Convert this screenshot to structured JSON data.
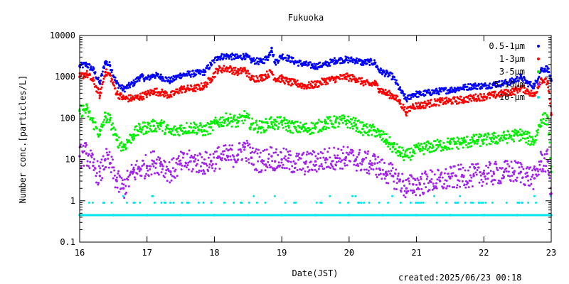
{
  "chart_data": {
    "type": "scatter",
    "title": "Fukuoka",
    "xlabel": "Date(JST)",
    "ylabel": "Number conc.[particles/L]",
    "xlim": [
      16,
      23
    ],
    "ylim": [
      0.1,
      10000
    ],
    "yscale": "log",
    "x_ticks": [
      "16",
      "17",
      "18",
      "19",
      "20",
      "21",
      "22",
      "23"
    ],
    "y_ticks": [
      "0.1",
      "1",
      "10",
      "100",
      "1000",
      "10000"
    ],
    "legend_position": "top-right",
    "series": [
      {
        "name": "0.5-1μm",
        "color": "#0000ff",
        "points": [
          [
            16.0,
            1800
          ],
          [
            16.1,
            2000
          ],
          [
            16.2,
            1500
          ],
          [
            16.3,
            700
          ],
          [
            16.38,
            2300
          ],
          [
            16.45,
            1900
          ],
          [
            16.55,
            700
          ],
          [
            16.65,
            500
          ],
          [
            16.8,
            700
          ],
          [
            16.9,
            1000
          ],
          [
            17.0,
            900
          ],
          [
            17.1,
            1100
          ],
          [
            17.2,
            1000
          ],
          [
            17.35,
            800
          ],
          [
            17.5,
            1100
          ],
          [
            17.7,
            1200
          ],
          [
            17.85,
            1300
          ],
          [
            17.95,
            2000
          ],
          [
            18.05,
            3000
          ],
          [
            18.2,
            3200
          ],
          [
            18.35,
            2900
          ],
          [
            18.45,
            3200
          ],
          [
            18.55,
            2500
          ],
          [
            18.7,
            2300
          ],
          [
            18.8,
            3000
          ],
          [
            18.85,
            5000
          ],
          [
            18.9,
            2200
          ],
          [
            19.0,
            3200
          ],
          [
            19.1,
            2800
          ],
          [
            19.2,
            2300
          ],
          [
            19.35,
            2000
          ],
          [
            19.5,
            1800
          ],
          [
            19.65,
            2000
          ],
          [
            19.8,
            2500
          ],
          [
            19.95,
            2600
          ],
          [
            20.1,
            2500
          ],
          [
            20.2,
            2200
          ],
          [
            20.3,
            2300
          ],
          [
            20.38,
            2200
          ],
          [
            20.45,
            1400
          ],
          [
            20.55,
            1200
          ],
          [
            20.65,
            1000
          ],
          [
            20.75,
            500
          ],
          [
            20.85,
            280
          ],
          [
            20.95,
            380
          ],
          [
            21.05,
            380
          ],
          [
            21.2,
            420
          ],
          [
            21.35,
            450
          ],
          [
            21.5,
            480
          ],
          [
            21.7,
            550
          ],
          [
            21.85,
            600
          ],
          [
            22.0,
            600
          ],
          [
            22.15,
            650
          ],
          [
            22.3,
            700
          ],
          [
            22.45,
            800
          ],
          [
            22.55,
            1000
          ],
          [
            22.65,
            700
          ],
          [
            22.75,
            600
          ],
          [
            22.85,
            1500
          ],
          [
            22.95,
            1600
          ],
          [
            23.0,
            800
          ]
        ]
      },
      {
        "name": "1-3μm",
        "color": "#ff0000",
        "points": [
          [
            16.0,
            1000
          ],
          [
            16.1,
            1200
          ],
          [
            16.2,
            800
          ],
          [
            16.3,
            350
          ],
          [
            16.38,
            1300
          ],
          [
            16.45,
            1100
          ],
          [
            16.55,
            400
          ],
          [
            16.65,
            300
          ],
          [
            16.8,
            300
          ],
          [
            16.9,
            330
          ],
          [
            17.0,
            380
          ],
          [
            17.1,
            450
          ],
          [
            17.2,
            420
          ],
          [
            17.35,
            350
          ],
          [
            17.5,
            500
          ],
          [
            17.7,
            520
          ],
          [
            17.85,
            600
          ],
          [
            17.95,
            900
          ],
          [
            18.05,
            1500
          ],
          [
            18.2,
            1600
          ],
          [
            18.35,
            1300
          ],
          [
            18.45,
            1500
          ],
          [
            18.55,
            900
          ],
          [
            18.7,
            950
          ],
          [
            18.85,
            1300
          ],
          [
            18.9,
            900
          ],
          [
            19.0,
            900
          ],
          [
            19.1,
            750
          ],
          [
            19.2,
            700
          ],
          [
            19.35,
            600
          ],
          [
            19.5,
            650
          ],
          [
            19.65,
            800
          ],
          [
            19.8,
            900
          ],
          [
            19.95,
            1000
          ],
          [
            20.1,
            900
          ],
          [
            20.2,
            750
          ],
          [
            20.3,
            650
          ],
          [
            20.38,
            700
          ],
          [
            20.45,
            500
          ],
          [
            20.55,
            400
          ],
          [
            20.65,
            350
          ],
          [
            20.75,
            250
          ],
          [
            20.85,
            140
          ],
          [
            20.95,
            200
          ],
          [
            21.05,
            200
          ],
          [
            21.2,
            230
          ],
          [
            21.35,
            250
          ],
          [
            21.5,
            260
          ],
          [
            21.7,
            280
          ],
          [
            21.85,
            310
          ],
          [
            22.0,
            330
          ],
          [
            22.15,
            360
          ],
          [
            22.3,
            400
          ],
          [
            22.45,
            450
          ],
          [
            22.55,
            550
          ],
          [
            22.65,
            450
          ],
          [
            22.75,
            350
          ],
          [
            22.85,
            900
          ],
          [
            22.95,
            700
          ],
          [
            23.0,
            120
          ]
        ]
      },
      {
        "name": "3-5μm",
        "color": "#00ee00",
        "points": [
          [
            16.0,
            150
          ],
          [
            16.1,
            160
          ],
          [
            16.2,
            80
          ],
          [
            16.3,
            40
          ],
          [
            16.38,
            110
          ],
          [
            16.45,
            90
          ],
          [
            16.55,
            30
          ],
          [
            16.65,
            20
          ],
          [
            16.8,
            40
          ],
          [
            16.9,
            55
          ],
          [
            17.0,
            60
          ],
          [
            17.1,
            65
          ],
          [
            17.2,
            70
          ],
          [
            17.35,
            45
          ],
          [
            17.5,
            55
          ],
          [
            17.7,
            60
          ],
          [
            17.85,
            50
          ],
          [
            17.95,
            60
          ],
          [
            18.05,
            80
          ],
          [
            18.2,
            95
          ],
          [
            18.35,
            80
          ],
          [
            18.45,
            110
          ],
          [
            18.55,
            70
          ],
          [
            18.7,
            60
          ],
          [
            18.85,
            80
          ],
          [
            18.9,
            70
          ],
          [
            19.0,
            80
          ],
          [
            19.1,
            65
          ],
          [
            19.2,
            60
          ],
          [
            19.35,
            55
          ],
          [
            19.5,
            60
          ],
          [
            19.65,
            75
          ],
          [
            19.8,
            80
          ],
          [
            19.95,
            85
          ],
          [
            20.1,
            70
          ],
          [
            20.2,
            55
          ],
          [
            20.3,
            50
          ],
          [
            20.38,
            50
          ],
          [
            20.45,
            40
          ],
          [
            20.55,
            30
          ],
          [
            20.65,
            20
          ],
          [
            20.75,
            15
          ],
          [
            20.85,
            12
          ],
          [
            20.95,
            15
          ],
          [
            21.05,
            18
          ],
          [
            21.2,
            20
          ],
          [
            21.35,
            22
          ],
          [
            21.5,
            24
          ],
          [
            21.7,
            26
          ],
          [
            21.85,
            28
          ],
          [
            22.0,
            30
          ],
          [
            22.15,
            32
          ],
          [
            22.3,
            34
          ],
          [
            22.45,
            38
          ],
          [
            22.55,
            40
          ],
          [
            22.65,
            33
          ],
          [
            22.75,
            28
          ],
          [
            22.85,
            90
          ],
          [
            22.95,
            100
          ],
          [
            23.0,
            5
          ]
        ]
      },
      {
        "name": "5-10μm",
        "color": "#a020f0",
        "points": [
          [
            16.0,
            12
          ],
          [
            16.1,
            14
          ],
          [
            16.2,
            7
          ],
          [
            16.3,
            4
          ],
          [
            16.38,
            10
          ],
          [
            16.45,
            8
          ],
          [
            16.55,
            3
          ],
          [
            16.65,
            2
          ],
          [
            16.8,
            5
          ],
          [
            16.9,
            6
          ],
          [
            17.0,
            7
          ],
          [
            17.1,
            9
          ],
          [
            17.2,
            8
          ],
          [
            17.35,
            5
          ],
          [
            17.5,
            8
          ],
          [
            17.7,
            9
          ],
          [
            17.85,
            8
          ],
          [
            17.95,
            9
          ],
          [
            18.05,
            11
          ],
          [
            18.2,
            12
          ],
          [
            18.35,
            13
          ],
          [
            18.45,
            20
          ],
          [
            18.55,
            11
          ],
          [
            18.7,
            9
          ],
          [
            18.85,
            12
          ],
          [
            18.9,
            9
          ],
          [
            19.0,
            10
          ],
          [
            19.1,
            9
          ],
          [
            19.2,
            8
          ],
          [
            19.35,
            8
          ],
          [
            19.5,
            9
          ],
          [
            19.65,
            10
          ],
          [
            19.8,
            11
          ],
          [
            19.95,
            11
          ],
          [
            20.1,
            10
          ],
          [
            20.2,
            9
          ],
          [
            20.3,
            8
          ],
          [
            20.38,
            8
          ],
          [
            20.45,
            6
          ],
          [
            20.55,
            5
          ],
          [
            20.65,
            4
          ],
          [
            20.75,
            3
          ],
          [
            20.85,
            2
          ],
          [
            20.95,
            2.5
          ],
          [
            21.05,
            2.5
          ],
          [
            21.2,
            3
          ],
          [
            21.35,
            3
          ],
          [
            21.5,
            3.5
          ],
          [
            21.7,
            4
          ],
          [
            21.85,
            4
          ],
          [
            22.0,
            4.5
          ],
          [
            22.15,
            4.5
          ],
          [
            22.3,
            5
          ],
          [
            22.45,
            5
          ],
          [
            22.55,
            5
          ],
          [
            22.65,
            4
          ],
          [
            22.75,
            3.5
          ],
          [
            22.85,
            9
          ],
          [
            22.95,
            9
          ],
          [
            23.0,
            1.5
          ]
        ]
      },
      {
        "name": "10-μm",
        "color": "#00e5ee",
        "points": [
          [
            16.0,
            0.45
          ],
          [
            16.5,
            0.45
          ],
          [
            17.0,
            0.45
          ],
          [
            17.5,
            0.45
          ],
          [
            18.0,
            0.45
          ],
          [
            18.5,
            0.45
          ],
          [
            19.0,
            0.45
          ],
          [
            19.5,
            0.45
          ],
          [
            20.0,
            0.45
          ],
          [
            20.5,
            0.45
          ],
          [
            21.0,
            0.45
          ],
          [
            21.5,
            0.45
          ],
          [
            22.0,
            0.45
          ],
          [
            22.5,
            0.45
          ],
          [
            23.0,
            0.45
          ]
        ]
      }
    ]
  },
  "footer": {
    "created": "created:2025/06/23 00:18"
  }
}
